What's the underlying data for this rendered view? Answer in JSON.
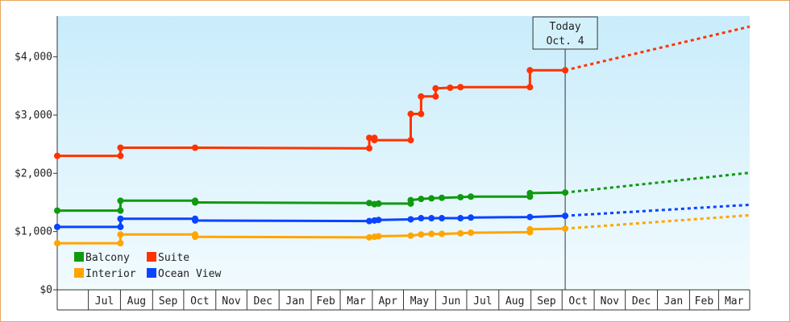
{
  "chart_data": {
    "type": "line",
    "title": "",
    "xlabel": "",
    "ylabel": "",
    "ylim": [
      0,
      4700
    ],
    "y_ticks": [
      {
        "value": 0,
        "label": "$0"
      },
      {
        "value": 1000,
        "label": "$1,000"
      },
      {
        "value": 2000,
        "label": "$2,000"
      },
      {
        "value": 3000,
        "label": "$3,000"
      },
      {
        "value": 4000,
        "label": "$4,000"
      }
    ],
    "x_start": "2021-06-01",
    "x_end": "2023-03-31",
    "months": [
      {
        "label": "Jul",
        "start": "2021-07-01"
      },
      {
        "label": "Aug",
        "start": "2021-08-01"
      },
      {
        "label": "Sep",
        "start": "2021-09-01"
      },
      {
        "label": "Oct",
        "start": "2021-10-01"
      },
      {
        "label": "Nov",
        "start": "2021-11-01"
      },
      {
        "label": "Dec",
        "start": "2021-12-01"
      },
      {
        "label": "Jan",
        "start": "2022-01-01"
      },
      {
        "label": "Feb",
        "start": "2022-02-01"
      },
      {
        "label": "Mar",
        "start": "2022-03-01"
      },
      {
        "label": "Apr",
        "start": "2022-04-01"
      },
      {
        "label": "May",
        "start": "2022-05-01"
      },
      {
        "label": "Jun",
        "start": "2022-06-01"
      },
      {
        "label": "Jul",
        "start": "2022-07-01"
      },
      {
        "label": "Aug",
        "start": "2022-08-01"
      },
      {
        "label": "Sep",
        "start": "2022-09-01"
      },
      {
        "label": "Oct",
        "start": "2022-10-01"
      },
      {
        "label": "Nov",
        "start": "2022-11-01"
      },
      {
        "label": "Dec",
        "start": "2022-12-01"
      },
      {
        "label": "Jan",
        "start": "2023-01-01"
      },
      {
        "label": "Feb",
        "start": "2023-02-01"
      },
      {
        "label": "Mar",
        "start": "2023-03-01"
      }
    ],
    "today": {
      "date": "2022-10-04",
      "label_line1": "Today",
      "label_line2": "Oct. 4"
    },
    "legend_position": "bottom-left",
    "series": [
      {
        "name": "Suite",
        "color": "#ff3300",
        "points": [
          {
            "x": "2021-06-01",
            "y": 2300
          },
          {
            "x": "2021-08-01",
            "y": 2300
          },
          {
            "x": "2021-08-01",
            "y": 2440
          },
          {
            "x": "2021-10-12",
            "y": 2440
          },
          {
            "x": "2022-03-29",
            "y": 2430
          },
          {
            "x": "2022-03-29",
            "y": 2610
          },
          {
            "x": "2022-04-03",
            "y": 2610
          },
          {
            "x": "2022-04-03",
            "y": 2570
          },
          {
            "x": "2022-05-08",
            "y": 2570
          },
          {
            "x": "2022-05-08",
            "y": 3020
          },
          {
            "x": "2022-05-18",
            "y": 3020
          },
          {
            "x": "2022-05-18",
            "y": 3320
          },
          {
            "x": "2022-06-01",
            "y": 3320
          },
          {
            "x": "2022-06-01",
            "y": 3460
          },
          {
            "x": "2022-06-15",
            "y": 3470
          },
          {
            "x": "2022-06-25",
            "y": 3480
          },
          {
            "x": "2022-08-31",
            "y": 3480
          },
          {
            "x": "2022-08-31",
            "y": 3770
          },
          {
            "x": "2022-10-04",
            "y": 3770
          }
        ],
        "projection": [
          {
            "x": "2022-10-04",
            "y": 3770
          },
          {
            "x": "2023-03-31",
            "y": 4520
          }
        ]
      },
      {
        "name": "Balcony",
        "color": "#0f9a0f",
        "points": [
          {
            "x": "2021-06-01",
            "y": 1360
          },
          {
            "x": "2021-08-01",
            "y": 1360
          },
          {
            "x": "2021-08-01",
            "y": 1530
          },
          {
            "x": "2021-10-12",
            "y": 1530
          },
          {
            "x": "2021-10-12",
            "y": 1500
          },
          {
            "x": "2022-03-29",
            "y": 1490
          },
          {
            "x": "2022-04-03",
            "y": 1470
          },
          {
            "x": "2022-04-07",
            "y": 1480
          },
          {
            "x": "2022-05-08",
            "y": 1480
          },
          {
            "x": "2022-05-08",
            "y": 1540
          },
          {
            "x": "2022-05-18",
            "y": 1560
          },
          {
            "x": "2022-05-28",
            "y": 1570
          },
          {
            "x": "2022-06-07",
            "y": 1580
          },
          {
            "x": "2022-06-25",
            "y": 1590
          },
          {
            "x": "2022-07-05",
            "y": 1600
          },
          {
            "x": "2022-08-31",
            "y": 1600
          },
          {
            "x": "2022-08-31",
            "y": 1660
          },
          {
            "x": "2022-10-04",
            "y": 1670
          }
        ],
        "projection": [
          {
            "x": "2022-10-04",
            "y": 1670
          },
          {
            "x": "2023-03-31",
            "y": 2010
          }
        ]
      },
      {
        "name": "Ocean View",
        "color": "#0a44ff",
        "points": [
          {
            "x": "2021-06-01",
            "y": 1080
          },
          {
            "x": "2021-08-01",
            "y": 1080
          },
          {
            "x": "2021-08-01",
            "y": 1220
          },
          {
            "x": "2021-10-12",
            "y": 1220
          },
          {
            "x": "2021-10-12",
            "y": 1190
          },
          {
            "x": "2022-03-29",
            "y": 1180
          },
          {
            "x": "2022-04-03",
            "y": 1190
          },
          {
            "x": "2022-04-07",
            "y": 1200
          },
          {
            "x": "2022-05-08",
            "y": 1210
          },
          {
            "x": "2022-05-18",
            "y": 1230
          },
          {
            "x": "2022-05-28",
            "y": 1230
          },
          {
            "x": "2022-06-07",
            "y": 1230
          },
          {
            "x": "2022-06-25",
            "y": 1230
          },
          {
            "x": "2022-07-05",
            "y": 1240
          },
          {
            "x": "2022-08-31",
            "y": 1250
          },
          {
            "x": "2022-10-04",
            "y": 1270
          }
        ],
        "projection": [
          {
            "x": "2022-10-04",
            "y": 1270
          },
          {
            "x": "2023-03-31",
            "y": 1460
          }
        ]
      },
      {
        "name": "Interior",
        "color": "#ffa500",
        "points": [
          {
            "x": "2021-06-01",
            "y": 800
          },
          {
            "x": "2021-08-01",
            "y": 800
          },
          {
            "x": "2021-08-01",
            "y": 950
          },
          {
            "x": "2021-10-12",
            "y": 950
          },
          {
            "x": "2021-10-12",
            "y": 910
          },
          {
            "x": "2022-03-29",
            "y": 900
          },
          {
            "x": "2022-04-03",
            "y": 910
          },
          {
            "x": "2022-04-07",
            "y": 920
          },
          {
            "x": "2022-05-08",
            "y": 930
          },
          {
            "x": "2022-05-18",
            "y": 950
          },
          {
            "x": "2022-05-28",
            "y": 960
          },
          {
            "x": "2022-06-07",
            "y": 960
          },
          {
            "x": "2022-06-25",
            "y": 970
          },
          {
            "x": "2022-07-05",
            "y": 980
          },
          {
            "x": "2022-08-31",
            "y": 990
          },
          {
            "x": "2022-08-31",
            "y": 1040
          },
          {
            "x": "2022-10-04",
            "y": 1050
          }
        ],
        "projection": [
          {
            "x": "2022-10-04",
            "y": 1050
          },
          {
            "x": "2023-03-31",
            "y": 1280
          }
        ]
      }
    ],
    "legend": [
      {
        "label": "Balcony",
        "color": "#0f9a0f"
      },
      {
        "label": "Suite",
        "color": "#ff3300"
      },
      {
        "label": "Interior",
        "color": "#ffa500"
      },
      {
        "label": "Ocean View",
        "color": "#0a44ff"
      }
    ]
  }
}
